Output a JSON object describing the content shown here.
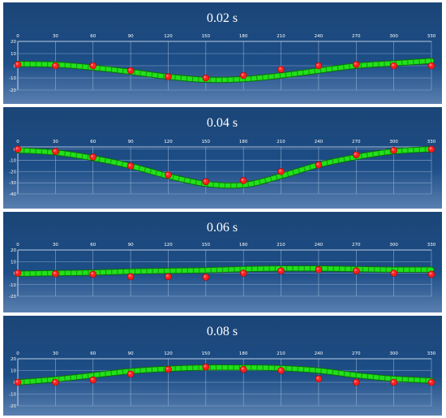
{
  "chart_data": [
    {
      "type": "line",
      "title": "0.02 s",
      "xlabel": "",
      "ylabel": "",
      "x": [
        0,
        30,
        60,
        90,
        120,
        150,
        180,
        210,
        240,
        270,
        300,
        330
      ],
      "x_ticks": [
        "0",
        "30",
        "60",
        "90",
        "120",
        "150",
        "180",
        "210",
        "240",
        "270",
        "300",
        "330"
      ],
      "y_ticks": [
        "20",
        "10",
        "0",
        "-10",
        "-20"
      ],
      "ylim": [
        -20,
        20
      ],
      "xlim": [
        0,
        330
      ],
      "grid": true,
      "series": [
        {
          "kind": "curve",
          "color": "#22e01a",
          "values": [
            1.5,
            1,
            -1.5,
            -5,
            -9,
            -11.5,
            -11,
            -8,
            -4,
            0,
            2,
            4
          ]
        },
        {
          "kind": "markers",
          "color": "#ff2020",
          "values": [
            1,
            0,
            0,
            -4,
            -9,
            -10,
            -8,
            -3,
            0,
            1,
            0,
            0
          ]
        }
      ]
    },
    {
      "type": "line",
      "title": "0.04 s",
      "xlabel": "",
      "ylabel": "",
      "x": [
        0,
        30,
        60,
        90,
        120,
        150,
        180,
        210,
        240,
        270,
        300,
        330
      ],
      "x_ticks": [
        "0",
        "30",
        "60",
        "90",
        "120",
        "150",
        "180",
        "210",
        "240",
        "270",
        "300",
        "330"
      ],
      "y_ticks": [
        "0",
        "-10",
        "-20",
        "-30",
        "-40"
      ],
      "ylim": [
        -40,
        2
      ],
      "xlim": [
        0,
        330
      ],
      "grid": true,
      "series": [
        {
          "kind": "curve",
          "color": "#22e01a",
          "values": [
            -1,
            -3,
            -8,
            -15,
            -24,
            -31,
            -32,
            -24,
            -14,
            -7,
            -2,
            0
          ]
        },
        {
          "kind": "markers",
          "color": "#ff2020",
          "values": [
            0,
            -2,
            -7,
            -15,
            -23,
            -29,
            -28,
            -20,
            -14,
            -5,
            -1,
            0
          ]
        }
      ]
    },
    {
      "type": "line",
      "title": "0.06 s",
      "xlabel": "",
      "ylabel": "",
      "x": [
        0,
        30,
        60,
        90,
        120,
        150,
        180,
        210,
        240,
        270,
        300,
        330
      ],
      "x_ticks": [
        "0",
        "30",
        "60",
        "90",
        "120",
        "150",
        "180",
        "210",
        "240",
        "270",
        "300",
        "330"
      ],
      "y_ticks": [
        "20",
        "10",
        "0",
        "-10",
        "-20"
      ],
      "ylim": [
        -20,
        20
      ],
      "xlim": [
        0,
        330
      ],
      "grid": true,
      "series": [
        {
          "kind": "curve",
          "color": "#22e01a",
          "values": [
            -0.5,
            0,
            0.5,
            1.5,
            2,
            2.5,
            3.5,
            4,
            4,
            3.5,
            3,
            3
          ]
        },
        {
          "kind": "markers",
          "color": "#ff2020",
          "values": [
            0,
            -0.5,
            -1,
            -3,
            -3,
            -3.5,
            0,
            2,
            3,
            2,
            0,
            -1
          ]
        }
      ]
    },
    {
      "type": "line",
      "title": "0.08 s",
      "xlabel": "",
      "ylabel": "",
      "x": [
        0,
        30,
        60,
        90,
        120,
        150,
        180,
        210,
        240,
        270,
        300,
        330
      ],
      "x_ticks": [
        "0",
        "30",
        "60",
        "90",
        "120",
        "150",
        "180",
        "210",
        "240",
        "270",
        "300",
        "330"
      ],
      "y_ticks": [
        "20",
        "10",
        "0",
        "-10",
        "-20"
      ],
      "ylim": [
        -20,
        20
      ],
      "xlim": [
        0,
        330
      ],
      "grid": true,
      "series": [
        {
          "kind": "curve",
          "color": "#22e01a",
          "values": [
            0,
            2.5,
            6,
            9.5,
            11.5,
            12.5,
            12.5,
            12,
            10,
            6,
            3,
            1.5
          ]
        },
        {
          "kind": "markers",
          "color": "#ff2020",
          "values": [
            0,
            0,
            2,
            7,
            11,
            13,
            11,
            10,
            3,
            0,
            0,
            0
          ]
        }
      ]
    }
  ],
  "colors": {
    "panel_top": "#1b4577",
    "panel_mid": "#1d4e87",
    "panel_bottom": "#5a7fb0",
    "grid": "#9fb8d8",
    "curve_fill": "#22e01a",
    "curve_edge": "#0b6d0c",
    "marker": "#ff2020"
  }
}
